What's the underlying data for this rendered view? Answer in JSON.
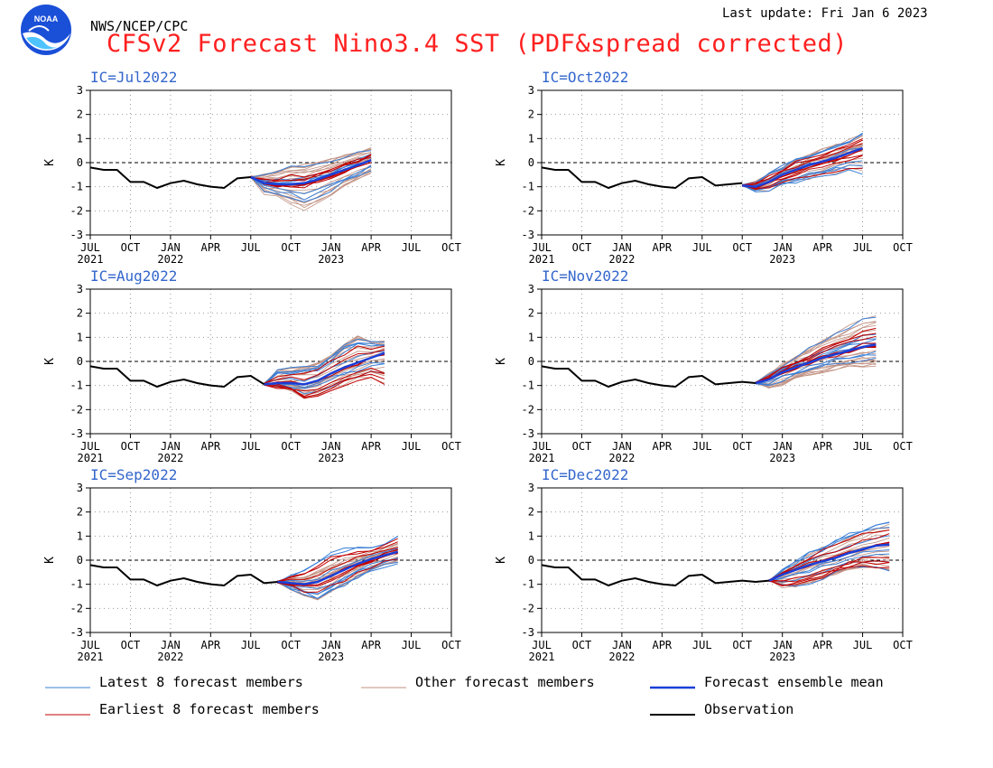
{
  "header": {
    "logo_text": "NOAA",
    "agency": "NWS/NCEP/CPC",
    "last_update": "Last update: Fri Jan 6 2023",
    "title": "CFSv2 Forecast Nino3.4 SST (PDF&spread corrected)"
  },
  "colors": {
    "title": "#ff2020",
    "panel_label": "#3366cc",
    "latest_members": "#3a7fd6",
    "earliest_members": "#c00000",
    "other_members": "#c09080",
    "ensemble_mean": "#1a3fd8",
    "observation": "#000000"
  },
  "axes": {
    "ylabel": "K",
    "yticks": [
      "3",
      "2",
      "1",
      "0",
      "-1",
      "-2",
      "-3"
    ],
    "xticks": [
      "JUL",
      "OCT",
      "JAN",
      "APR",
      "JUL",
      "OCT",
      "JAN",
      "APR",
      "JUL",
      "OCT"
    ],
    "year_labels": [
      {
        "text": "2021",
        "index": 0
      },
      {
        "text": "2022",
        "index": 2
      },
      {
        "text": "2023",
        "index": 6
      }
    ]
  },
  "legend": [
    {
      "label": "Latest 8 forecast members",
      "type": "latest"
    },
    {
      "label": "Other forecast members",
      "type": "other"
    },
    {
      "label": "Forecast ensemble mean",
      "type": "mean"
    },
    {
      "label": "Earliest 8 forecast members",
      "type": "earliest"
    },
    {
      "label": "Observation",
      "type": "observation"
    }
  ],
  "chart_data": [
    {
      "type": "line",
      "title": "IC=Jul2022",
      "ylabel": "K",
      "ylim": [
        -3,
        3
      ],
      "x_range": [
        "Jul 2021",
        "Oct 2023"
      ],
      "grid": true,
      "observation": {
        "x": [
          "Jul 2021",
          "Aug 2021",
          "Sep 2021",
          "Oct 2021",
          "Nov 2021",
          "Dec 2021",
          "Jan 2022",
          "Feb 2022",
          "Mar 2022",
          "Apr 2022",
          "May 2022",
          "Jun 2022",
          "Jul 2022"
        ],
        "y": [
          -0.2,
          -0.3,
          -0.3,
          -0.8,
          -0.8,
          -1.05,
          -0.85,
          -0.75,
          -0.9,
          -1.0,
          -1.05,
          -0.65,
          -0.6
        ]
      },
      "ensemble_mean": {
        "x": [
          "Jul 2022",
          "Aug 2022",
          "Sep 2022",
          "Oct 2022",
          "Nov 2022",
          "Dec 2022",
          "Jan 2023",
          "Feb 2023",
          "Mar 2023",
          "Apr 2023"
        ],
        "y": [
          -0.6,
          -0.85,
          -0.9,
          -0.9,
          -0.85,
          -0.7,
          -0.5,
          -0.3,
          -0.1,
          0.1
        ]
      },
      "spread": {
        "low": [
          -0.7,
          -1.3,
          -1.5,
          -1.8,
          -2.1,
          -1.8,
          -1.5,
          -1.1,
          -0.8,
          -0.5
        ],
        "high": [
          -0.5,
          -0.4,
          -0.2,
          0.0,
          0.05,
          0.15,
          0.25,
          0.4,
          0.55,
          0.7
        ]
      }
    },
    {
      "type": "line",
      "title": "IC=Oct2022",
      "ylabel": "K",
      "ylim": [
        -3,
        3
      ],
      "x_range": [
        "Jul 2021",
        "Oct 2023"
      ],
      "grid": true,
      "observation": {
        "x": [
          "Jul 2021",
          "Aug 2021",
          "Sep 2021",
          "Oct 2021",
          "Nov 2021",
          "Dec 2021",
          "Jan 2022",
          "Feb 2022",
          "Mar 2022",
          "Apr 2022",
          "May 2022",
          "Jun 2022",
          "Jul 2022",
          "Aug 2022",
          "Sep 2022",
          "Oct 2022"
        ],
        "y": [
          -0.2,
          -0.3,
          -0.3,
          -0.8,
          -0.8,
          -1.05,
          -0.85,
          -0.75,
          -0.9,
          -1.0,
          -1.05,
          -0.65,
          -0.6,
          -0.95,
          -0.9,
          -0.85
        ]
      },
      "ensemble_mean": {
        "x": [
          "Oct 2022",
          "Nov 2022",
          "Dec 2022",
          "Jan 2023",
          "Feb 2023",
          "Mar 2023",
          "Apr 2023",
          "May 2023",
          "Jun 2023",
          "Jul 2023"
        ],
        "y": [
          -0.95,
          -1.0,
          -0.8,
          -0.5,
          -0.3,
          -0.1,
          0.05,
          0.2,
          0.4,
          0.6
        ]
      },
      "spread": {
        "low": [
          -1.0,
          -1.2,
          -1.2,
          -1.0,
          -0.9,
          -0.8,
          -0.7,
          -0.6,
          -0.5,
          -0.6
        ],
        "high": [
          -0.85,
          -0.8,
          -0.4,
          -0.1,
          0.2,
          0.4,
          0.6,
          0.8,
          1.0,
          1.3
        ]
      }
    },
    {
      "type": "line",
      "title": "IC=Aug2022",
      "ylabel": "K",
      "ylim": [
        -3,
        3
      ],
      "x_range": [
        "Jul 2021",
        "Oct 2023"
      ],
      "grid": true,
      "observation": {
        "x": [
          "Jul 2021",
          "Aug 2021",
          "Sep 2021",
          "Oct 2021",
          "Nov 2021",
          "Dec 2021",
          "Jan 2022",
          "Feb 2022",
          "Mar 2022",
          "Apr 2022",
          "May 2022",
          "Jun 2022",
          "Jul 2022",
          "Aug 2022"
        ],
        "y": [
          -0.2,
          -0.3,
          -0.3,
          -0.8,
          -0.8,
          -1.05,
          -0.85,
          -0.75,
          -0.9,
          -1.0,
          -1.05,
          -0.65,
          -0.6,
          -0.95
        ]
      },
      "ensemble_mean": {
        "x": [
          "Aug 2022",
          "Sep 2022",
          "Oct 2022",
          "Nov 2022",
          "Dec 2022",
          "Jan 2023",
          "Feb 2023",
          "Mar 2023",
          "Apr 2023",
          "May 2023"
        ],
        "y": [
          -0.95,
          -0.9,
          -0.9,
          -0.95,
          -0.8,
          -0.5,
          -0.25,
          -0.05,
          0.15,
          0.35
        ]
      },
      "spread": {
        "low": [
          -1.0,
          -1.1,
          -1.3,
          -1.6,
          -1.5,
          -1.3,
          -1.1,
          -0.9,
          -0.8,
          -1.15
        ],
        "high": [
          -0.9,
          -0.3,
          -0.2,
          -0.1,
          0.0,
          0.4,
          0.9,
          1.2,
          0.9,
          0.85
        ]
      }
    },
    {
      "type": "line",
      "title": "IC=Nov2022",
      "ylabel": "K",
      "ylim": [
        -3,
        3
      ],
      "x_range": [
        "Jul 2021",
        "Oct 2023"
      ],
      "grid": true,
      "observation": {
        "x": [
          "Jul 2021",
          "Aug 2021",
          "Sep 2021",
          "Oct 2021",
          "Nov 2021",
          "Dec 2021",
          "Jan 2022",
          "Feb 2022",
          "Mar 2022",
          "Apr 2022",
          "May 2022",
          "Jun 2022",
          "Jul 2022",
          "Aug 2022",
          "Sep 2022",
          "Oct 2022",
          "Nov 2022"
        ],
        "y": [
          -0.2,
          -0.3,
          -0.3,
          -0.8,
          -0.8,
          -1.05,
          -0.85,
          -0.75,
          -0.9,
          -1.0,
          -1.05,
          -0.65,
          -0.6,
          -0.95,
          -0.9,
          -0.85,
          -0.9
        ]
      },
      "ensemble_mean": {
        "x": [
          "Nov 2022",
          "Dec 2022",
          "Jan 2023",
          "Feb 2023",
          "Mar 2023",
          "Apr 2023",
          "May 2023",
          "Jun 2023",
          "Jul 2023",
          "Aug 2023"
        ],
        "y": [
          -0.9,
          -0.75,
          -0.45,
          -0.25,
          -0.05,
          0.15,
          0.3,
          0.45,
          0.6,
          0.7
        ]
      },
      "spread": {
        "low": [
          -0.95,
          -1.1,
          -1.0,
          -0.8,
          -0.6,
          -0.5,
          -0.4,
          -0.3,
          -0.3,
          -0.3
        ],
        "high": [
          -0.85,
          -0.5,
          -0.1,
          0.3,
          0.7,
          1.0,
          1.3,
          1.6,
          2.0,
          2.05
        ]
      }
    },
    {
      "type": "line",
      "title": "IC=Sep2022",
      "ylabel": "K",
      "ylim": [
        -3,
        3
      ],
      "x_range": [
        "Jul 2021",
        "Oct 2023"
      ],
      "grid": true,
      "observation": {
        "x": [
          "Jul 2021",
          "Aug 2021",
          "Sep 2021",
          "Oct 2021",
          "Nov 2021",
          "Dec 2021",
          "Jan 2022",
          "Feb 2022",
          "Mar 2022",
          "Apr 2022",
          "May 2022",
          "Jun 2022",
          "Jul 2022",
          "Aug 2022",
          "Sep 2022"
        ],
        "y": [
          -0.2,
          -0.3,
          -0.3,
          -0.8,
          -0.8,
          -1.05,
          -0.85,
          -0.75,
          -0.9,
          -1.0,
          -1.05,
          -0.65,
          -0.6,
          -0.95,
          -0.9
        ]
      },
      "ensemble_mean": {
        "x": [
          "Sep 2022",
          "Oct 2022",
          "Nov 2022",
          "Dec 2022",
          "Jan 2023",
          "Feb 2023",
          "Mar 2023",
          "Apr 2023",
          "May 2023",
          "Jun 2023"
        ],
        "y": [
          -0.9,
          -0.95,
          -1.0,
          -0.9,
          -0.65,
          -0.4,
          -0.15,
          0.05,
          0.2,
          0.35
        ]
      },
      "spread": {
        "low": [
          -0.95,
          -1.2,
          -1.5,
          -1.75,
          -1.4,
          -1.1,
          -0.8,
          -0.5,
          -0.3,
          -0.2
        ],
        "high": [
          -0.85,
          -0.6,
          -0.3,
          0.1,
          0.45,
          0.6,
          0.6,
          0.55,
          0.8,
          1.2
        ]
      }
    },
    {
      "type": "line",
      "title": "IC=Dec2022",
      "ylabel": "K",
      "ylim": [
        -3,
        3
      ],
      "x_range": [
        "Jul 2021",
        "Oct 2023"
      ],
      "grid": true,
      "observation": {
        "x": [
          "Jul 2021",
          "Aug 2021",
          "Sep 2021",
          "Oct 2021",
          "Nov 2021",
          "Dec 2021",
          "Jan 2022",
          "Feb 2022",
          "Mar 2022",
          "Apr 2022",
          "May 2022",
          "Jun 2022",
          "Jul 2022",
          "Aug 2022",
          "Sep 2022",
          "Oct 2022",
          "Nov 2022",
          "Dec 2022"
        ],
        "y": [
          -0.2,
          -0.3,
          -0.3,
          -0.8,
          -0.8,
          -1.05,
          -0.85,
          -0.75,
          -0.9,
          -1.0,
          -1.05,
          -0.65,
          -0.6,
          -0.95,
          -0.9,
          -0.85,
          -0.9,
          -0.85
        ]
      },
      "ensemble_mean": {
        "x": [
          "Dec 2022",
          "Jan 2023",
          "Feb 2023",
          "Mar 2023",
          "Apr 2023",
          "May 2023",
          "Jun 2023",
          "Jul 2023",
          "Aug 2023",
          "Sep 2023"
        ],
        "y": [
          -0.85,
          -0.6,
          -0.4,
          -0.2,
          -0.05,
          0.1,
          0.3,
          0.45,
          0.6,
          0.65
        ]
      },
      "spread": {
        "low": [
          -0.9,
          -1.2,
          -1.25,
          -1.1,
          -0.9,
          -0.7,
          -0.5,
          -0.4,
          -0.5,
          -0.6
        ],
        "high": [
          -0.8,
          -0.4,
          0.0,
          0.4,
          0.7,
          1.0,
          1.3,
          1.5,
          1.7,
          1.85
        ]
      }
    }
  ]
}
